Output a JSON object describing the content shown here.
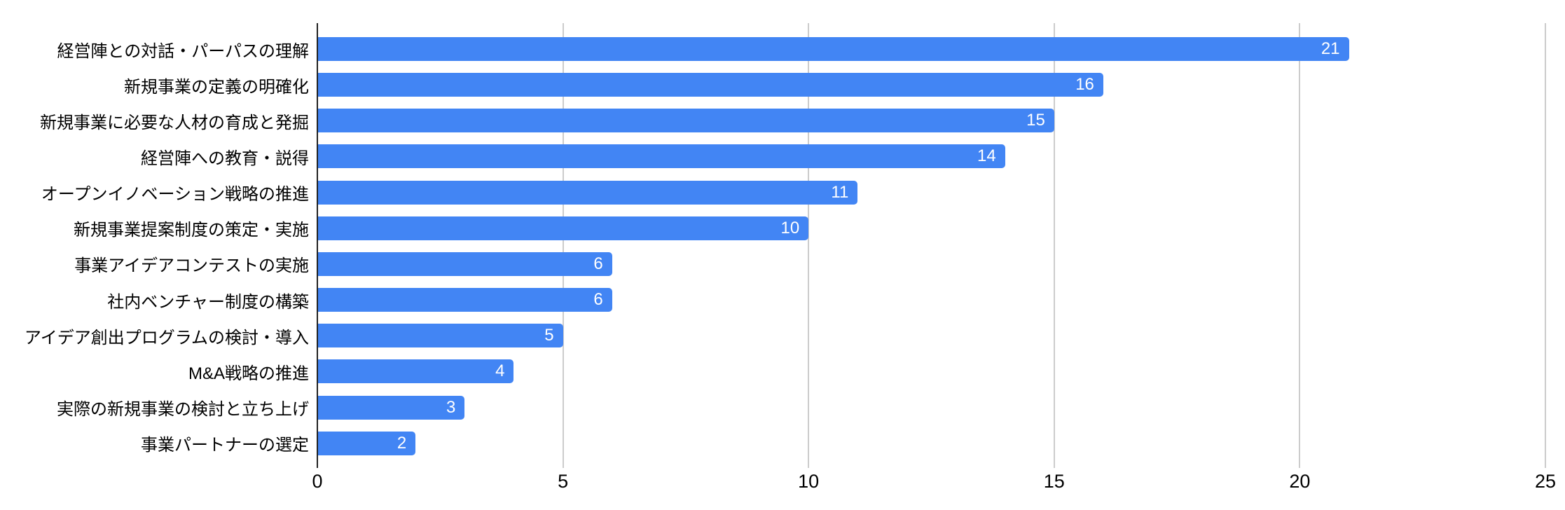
{
  "chart_data": {
    "type": "bar",
    "orientation": "horizontal",
    "categories": [
      "経営陣との対話・パーパスの理解",
      "新規事業の定義の明確化",
      "新規事業に必要な人材の育成と発掘",
      "経営陣への教育・説得",
      "オープンイノベーション戦略の推進",
      "新規事業提案制度の策定・実施",
      "事業アイデアコンテストの実施",
      "社内ベンチャー制度の構築",
      "アイデア創出プログラムの検討・導入",
      "M&A戦略の推進",
      "実際の新規事業の検討と立ち上げ",
      "事業パートナーの選定"
    ],
    "values": [
      21,
      16,
      15,
      14,
      11,
      10,
      6,
      6,
      5,
      4,
      3,
      2
    ],
    "value_labels": [
      "21",
      "16",
      "15",
      "14",
      "11",
      "10",
      "6",
      "6",
      "5",
      "4",
      "3",
      "2"
    ],
    "xlim": [
      0,
      25
    ],
    "x_ticks": [
      "0",
      "5",
      "10",
      "15",
      "20",
      "25"
    ],
    "grid": true,
    "legend": "none",
    "colors": {
      "bar": "#4285f4",
      "value_label": "#ffffff",
      "gridline": "#cccccc",
      "axis_line": "#212121",
      "text": "#000000",
      "background": "#ffffff"
    }
  }
}
